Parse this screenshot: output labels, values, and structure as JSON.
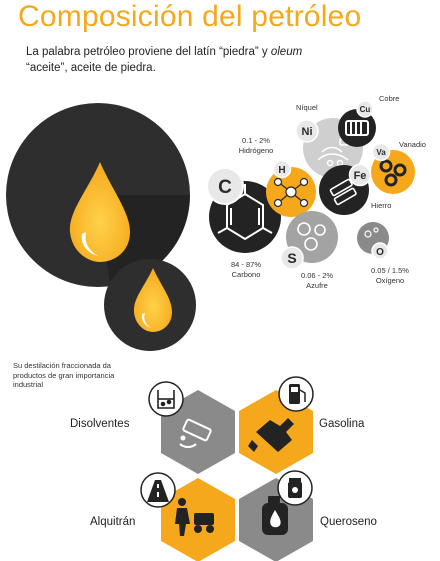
{
  "title": "Composición del petróleo",
  "intro": {
    "line1_start": "La palabra petróleo proviene del latín “piedra” y ",
    "line1_em": "oleum",
    "line2": "“aceite”, aceite de piedra."
  },
  "elements": [
    {
      "symbol": "C",
      "name": "Carbono",
      "percent": "84 - 87%"
    },
    {
      "symbol": "H",
      "name": "Hidrógeno",
      "percent": "0.1 - 2%"
    },
    {
      "symbol": "S",
      "name": "Azufre",
      "percent": "0.06 - 2%"
    },
    {
      "symbol": "O",
      "name": "Oxígeno",
      "percent": "0.05 / 1.5%"
    },
    {
      "symbol": "Ni",
      "name": "Níquel"
    },
    {
      "symbol": "Cu",
      "name": "Cobre"
    },
    {
      "symbol": "Va",
      "name": "Vanadio"
    },
    {
      "symbol": "Fe",
      "name": "Hierro"
    }
  ],
  "distillation_note": "Su destilación fraccionada da productos de gran importancia industrial",
  "products": [
    {
      "name": "Disolventes",
      "icon": "solvent-pour-icon"
    },
    {
      "name": "Gasolina",
      "icon": "fuel-nozzle-icon"
    },
    {
      "name": "Alquitrán",
      "icon": "road-worker-icon"
    },
    {
      "name": "Queroseno",
      "icon": "kerosene-bottle-icon"
    }
  ],
  "colors": {
    "accent": "#f5a81c",
    "dark": "#2b2b2b",
    "gray": "#8a8a8a"
  }
}
